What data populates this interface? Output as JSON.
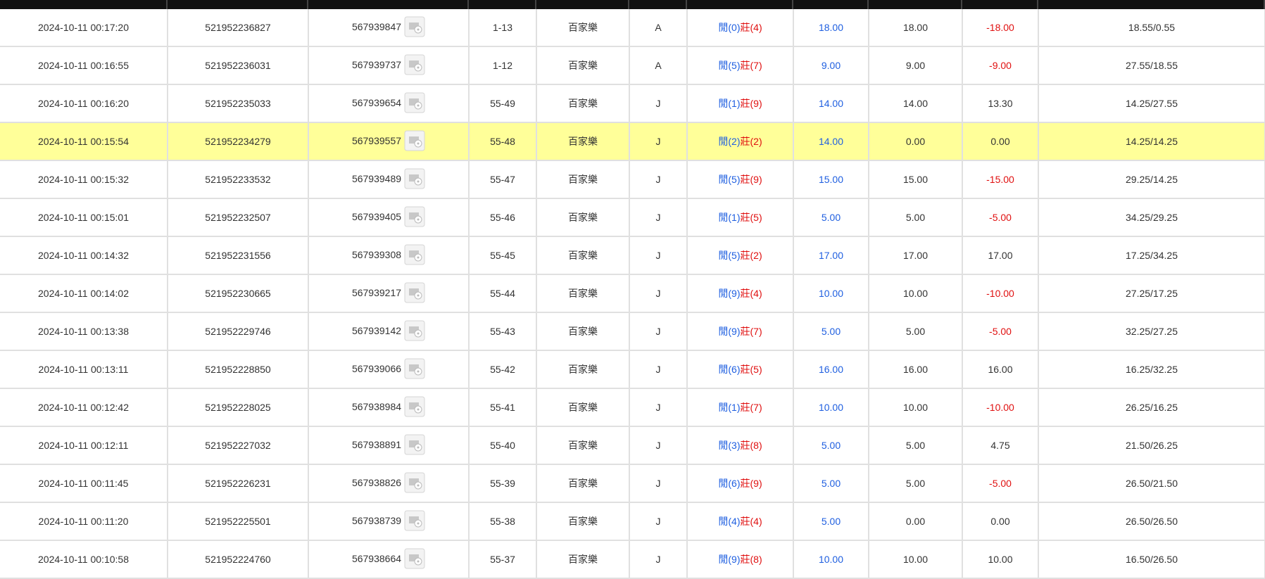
{
  "table": {
    "rows": [
      [
        "2024-10-11 00:17:20",
        "521952236827",
        "567939847",
        "1-13",
        "百家樂",
        "A",
        "閒(0)",
        "莊(4)",
        "18.00",
        "18.00",
        "-18.00",
        "18.55/0.55"
      ],
      [
        "2024-10-11 00:16:55",
        "521952236031",
        "567939737",
        "1-12",
        "百家樂",
        "A",
        "閒(5)",
        "莊(7)",
        "9.00",
        "9.00",
        "-9.00",
        "27.55/18.55"
      ],
      [
        "2024-10-11 00:16:20",
        "521952235033",
        "567939654",
        "55-49",
        "百家樂",
        "J",
        "閒(1)",
        "莊(9)",
        "14.00",
        "14.00",
        "13.30",
        "14.25/27.55"
      ],
      [
        "2024-10-11 00:15:54",
        "521952234279",
        "567939557",
        "55-48",
        "百家樂",
        "J",
        "閒(2)",
        "莊(2)",
        "14.00",
        "0.00",
        "0.00",
        "14.25/14.25"
      ],
      [
        "2024-10-11 00:15:32",
        "521952233532",
        "567939489",
        "55-47",
        "百家樂",
        "J",
        "閒(5)",
        "莊(9)",
        "15.00",
        "15.00",
        "-15.00",
        "29.25/14.25"
      ],
      [
        "2024-10-11 00:15:01",
        "521952232507",
        "567939405",
        "55-46",
        "百家樂",
        "J",
        "閒(1)",
        "莊(5)",
        "5.00",
        "5.00",
        "-5.00",
        "34.25/29.25"
      ],
      [
        "2024-10-11 00:14:32",
        "521952231556",
        "567939308",
        "55-45",
        "百家樂",
        "J",
        "閒(5)",
        "莊(2)",
        "17.00",
        "17.00",
        "17.00",
        "17.25/34.25"
      ],
      [
        "2024-10-11 00:14:02",
        "521952230665",
        "567939217",
        "55-44",
        "百家樂",
        "J",
        "閒(9)",
        "莊(4)",
        "10.00",
        "10.00",
        "-10.00",
        "27.25/17.25"
      ],
      [
        "2024-10-11 00:13:38",
        "521952229746",
        "567939142",
        "55-43",
        "百家樂",
        "J",
        "閒(9)",
        "莊(7)",
        "5.00",
        "5.00",
        "-5.00",
        "32.25/27.25"
      ],
      [
        "2024-10-11 00:13:11",
        "521952228850",
        "567939066",
        "55-42",
        "百家樂",
        "J",
        "閒(6)",
        "莊(5)",
        "16.00",
        "16.00",
        "16.00",
        "16.25/32.25"
      ],
      [
        "2024-10-11 00:12:42",
        "521952228025",
        "567938984",
        "55-41",
        "百家樂",
        "J",
        "閒(1)",
        "莊(7)",
        "10.00",
        "10.00",
        "-10.00",
        "26.25/16.25"
      ],
      [
        "2024-10-11 00:12:11",
        "521952227032",
        "567938891",
        "55-40",
        "百家樂",
        "J",
        "閒(3)",
        "莊(8)",
        "5.00",
        "5.00",
        "4.75",
        "21.50/26.25"
      ],
      [
        "2024-10-11 00:11:45",
        "521952226231",
        "567938826",
        "55-39",
        "百家樂",
        "J",
        "閒(6)",
        "莊(9)",
        "5.00",
        "5.00",
        "-5.00",
        "26.50/21.50"
      ],
      [
        "2024-10-11 00:11:20",
        "521952225501",
        "567938739",
        "55-38",
        "百家樂",
        "J",
        "閒(4)",
        "莊(4)",
        "5.00",
        "0.00",
        "0.00",
        "26.50/26.50"
      ],
      [
        "2024-10-11 00:10:58",
        "521952224760",
        "567938664",
        "55-37",
        "百家樂",
        "J",
        "閒(9)",
        "莊(8)",
        "10.00",
        "10.00",
        "10.00",
        "16.50/26.50"
      ]
    ]
  }
}
